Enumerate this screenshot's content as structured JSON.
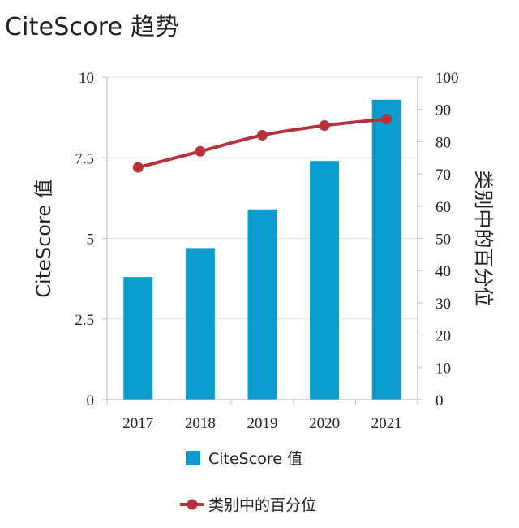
{
  "title": "CiteScore 趋势",
  "colors": {
    "bar": "#0a9ccf",
    "line": "#b5323c",
    "grid": "#e3e3e3",
    "axis": "#bdbdbd"
  },
  "chart_data": {
    "type": "bar+line",
    "categories": [
      "2017",
      "2018",
      "2019",
      "2020",
      "2021"
    ],
    "series": [
      {
        "name": "CiteScore 值",
        "type": "bar",
        "axis": "left",
        "values": [
          3.8,
          4.7,
          5.9,
          7.4,
          9.3
        ]
      },
      {
        "name": "类别中的百分位",
        "type": "line",
        "axis": "right",
        "values": [
          72,
          77,
          82,
          85,
          87
        ]
      }
    ],
    "y_left": {
      "label": "CiteScore 值",
      "range": [
        0,
        10
      ],
      "ticks": [
        0,
        2.5,
        5,
        7.5,
        10
      ],
      "tick_labels": [
        "0",
        "2.5",
        "5",
        "7.5",
        "10"
      ]
    },
    "y_right": {
      "label": "类别中的百分位",
      "range": [
        0,
        100
      ],
      "ticks": [
        0,
        10,
        20,
        30,
        40,
        50,
        60,
        70,
        80,
        90,
        100
      ],
      "tick_labels": [
        "0",
        "10",
        "20",
        "30",
        "40",
        "50",
        "60",
        "70",
        "80",
        "90",
        "100"
      ]
    },
    "grid": true,
    "legend": {
      "position": "bottom",
      "entries": [
        "CiteScore 值",
        "类别中的百分位"
      ]
    }
  }
}
